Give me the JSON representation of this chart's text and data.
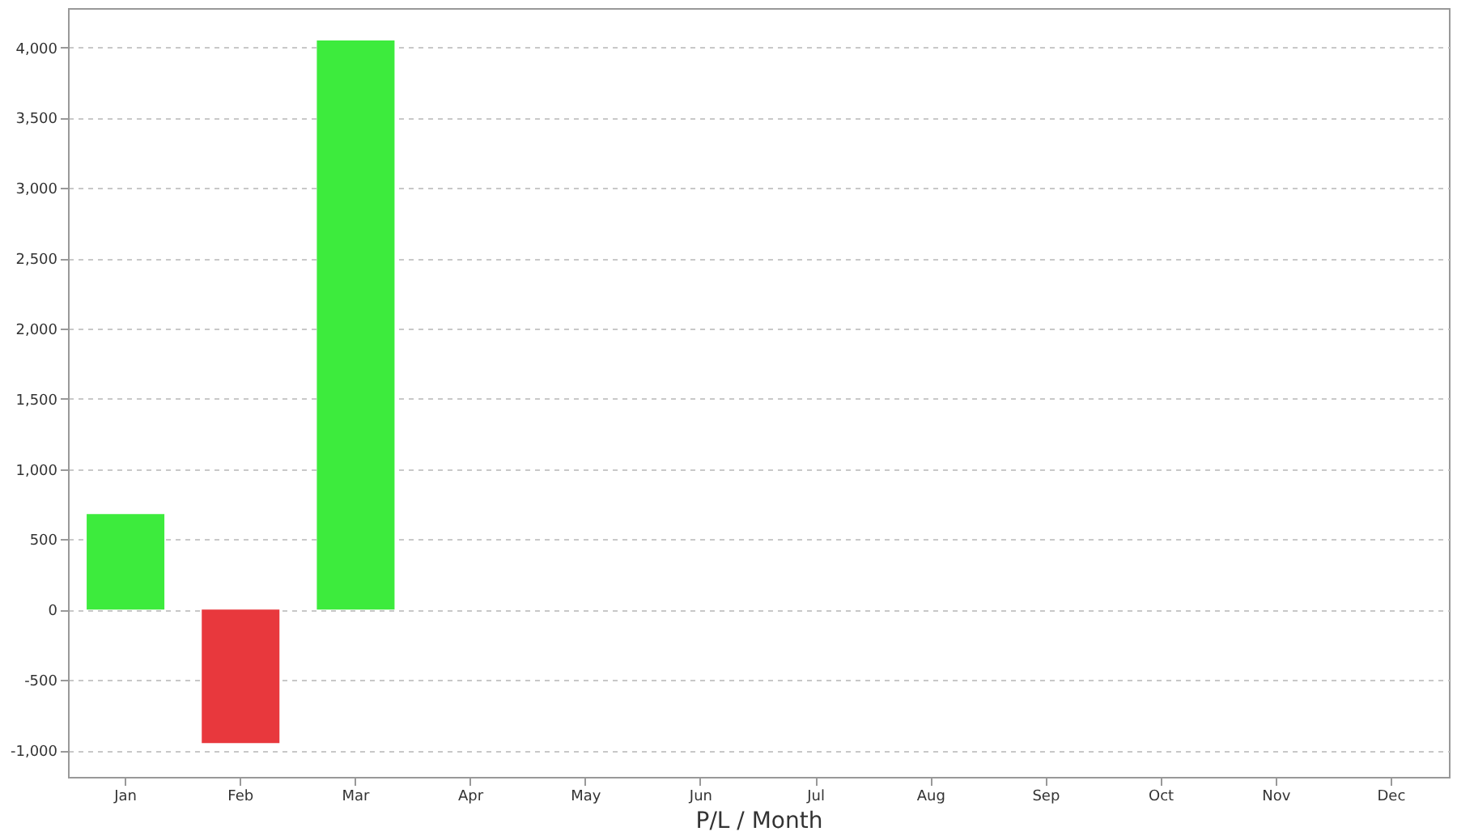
{
  "chart_data": {
    "type": "bar",
    "xlabel": "P/L / Month",
    "categories": [
      "Jan",
      "Feb",
      "Mar",
      "Apr",
      "May",
      "Jun",
      "Jul",
      "Aug",
      "Sep",
      "Oct",
      "Nov",
      "Dec"
    ],
    "values": [
      680,
      -950,
      4050,
      null,
      null,
      null,
      null,
      null,
      null,
      null,
      null,
      null
    ],
    "colors": [
      "#3deb3d",
      "#e8383d",
      "#3deb3d",
      null,
      null,
      null,
      null,
      null,
      null,
      null,
      null,
      null
    ],
    "ylim": [
      -1190,
      4280
    ],
    "yticks": [
      {
        "value": -1000,
        "label": "-1,000"
      },
      {
        "value": -500,
        "label": "-500"
      },
      {
        "value": 0,
        "label": "0"
      },
      {
        "value": 500,
        "label": "500"
      },
      {
        "value": 1000,
        "label": "1,000"
      },
      {
        "value": 1500,
        "label": "1,500"
      },
      {
        "value": 2000,
        "label": "2,000"
      },
      {
        "value": 2500,
        "label": "2,500"
      },
      {
        "value": 3000,
        "label": "3,000"
      },
      {
        "value": 3500,
        "label": "3,500"
      },
      {
        "value": 4000,
        "label": "4,000"
      }
    ],
    "grid": "y"
  }
}
